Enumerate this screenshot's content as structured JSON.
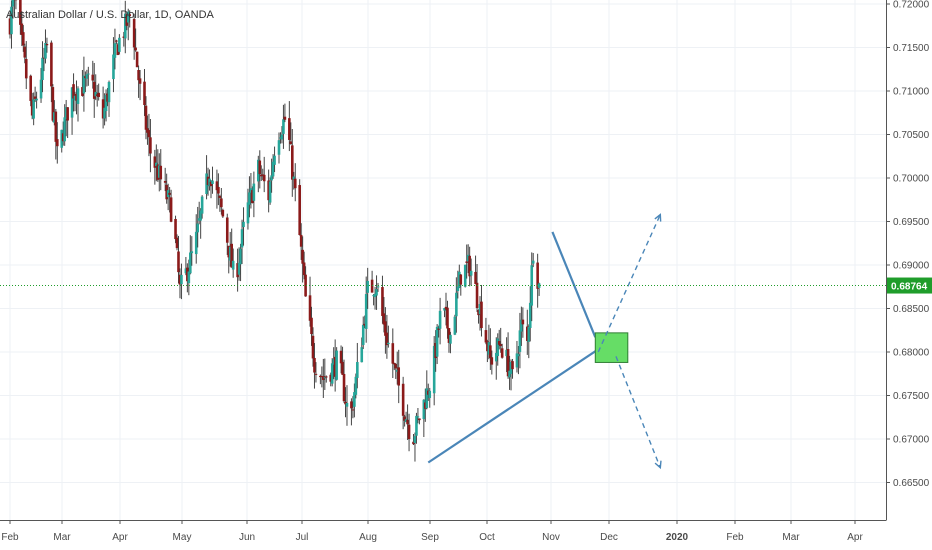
{
  "chart_data": {
    "type": "candlestick",
    "title": "Australian Dollar / U.S. Dollar, 1D, OANDA",
    "xlabel": "",
    "ylabel": "",
    "ylim": [
      0.6635,
      0.7205
    ],
    "grid": true,
    "x_ticks": [
      "Feb",
      "Mar",
      "Apr",
      "May",
      "Jun",
      "Jul",
      "Aug",
      "Sep",
      "Oct",
      "Nov",
      "Dec",
      "2020",
      "Feb",
      "Mar",
      "Apr"
    ],
    "y_ticks": [
      "0.72000",
      "0.71500",
      "0.71000",
      "0.70500",
      "0.70000",
      "0.69500",
      "0.69000",
      "0.68500",
      "0.68000",
      "0.67500",
      "0.67000",
      "0.66500"
    ],
    "last_price": "0.68764",
    "waypoints": [
      {
        "d": 0,
        "p": 0.718
      },
      {
        "d": 3,
        "p": 0.721
      },
      {
        "d": 15,
        "p": 0.707
      },
      {
        "d": 25,
        "p": 0.715
      },
      {
        "d": 32,
        "p": 0.7025
      },
      {
        "d": 42,
        "p": 0.71
      },
      {
        "d": 55,
        "p": 0.711
      },
      {
        "d": 63,
        "p": 0.707
      },
      {
        "d": 72,
        "p": 0.715
      },
      {
        "d": 82,
        "p": 0.719
      },
      {
        "d": 88,
        "p": 0.71
      },
      {
        "d": 95,
        "p": 0.703
      },
      {
        "d": 110,
        "p": 0.696
      },
      {
        "d": 115,
        "p": 0.687
      },
      {
        "d": 125,
        "p": 0.692
      },
      {
        "d": 135,
        "p": 0.701
      },
      {
        "d": 145,
        "p": 0.695
      },
      {
        "d": 152,
        "p": 0.688
      },
      {
        "d": 160,
        "p": 0.696
      },
      {
        "d": 168,
        "p": 0.701
      },
      {
        "d": 175,
        "p": 0.698
      },
      {
        "d": 180,
        "p": 0.705
      },
      {
        "d": 187,
        "p": 0.707
      },
      {
        "d": 195,
        "p": 0.695
      },
      {
        "d": 200,
        "p": 0.686
      },
      {
        "d": 206,
        "p": 0.679
      },
      {
        "d": 212,
        "p": 0.677
      },
      {
        "d": 222,
        "p": 0.679
      },
      {
        "d": 230,
        "p": 0.672
      },
      {
        "d": 236,
        "p": 0.679
      },
      {
        "d": 242,
        "p": 0.687
      },
      {
        "d": 248,
        "p": 0.688
      },
      {
        "d": 253,
        "p": 0.683
      },
      {
        "d": 260,
        "p": 0.678
      },
      {
        "d": 266,
        "p": 0.674
      },
      {
        "d": 272,
        "p": 0.67
      },
      {
        "d": 278,
        "p": 0.673
      },
      {
        "d": 285,
        "p": 0.677
      },
      {
        "d": 292,
        "p": 0.685
      },
      {
        "d": 298,
        "p": 0.682
      },
      {
        "d": 305,
        "p": 0.689
      },
      {
        "d": 311,
        "p": 0.69
      },
      {
        "d": 318,
        "p": 0.685
      },
      {
        "d": 325,
        "p": 0.679
      },
      {
        "d": 332,
        "p": 0.681
      },
      {
        "d": 340,
        "p": 0.677
      },
      {
        "d": 346,
        "p": 0.683
      },
      {
        "d": 350,
        "p": 0.681
      },
      {
        "d": 354,
        "p": 0.692
      },
      {
        "d": 358,
        "p": 0.6876
      }
    ],
    "drawings": {
      "trendline": {
        "from": {
          "d": 283,
          "p": 0.6673
        },
        "to": {
          "d": 413,
          "p": 0.682
        }
      },
      "swing_line": {
        "from": {
          "d": 367,
          "p": 0.6938
        },
        "to": {
          "d": 396,
          "p": 0.6817
        }
      },
      "target_box": {
        "d1": 396,
        "d2": 418,
        "p1": 0.6822,
        "p2": 0.6788
      },
      "projection_up": {
        "from": {
          "d": 398,
          "p": 0.68
        },
        "to": {
          "d": 440,
          "p": 0.6958
        }
      },
      "projection_down": {
        "from": {
          "d": 410,
          "p": 0.6795
        },
        "to": {
          "d": 440,
          "p": 0.6667
        }
      }
    },
    "colors": {
      "up": "#26a69a",
      "down": "#8b1a1a",
      "wick": "#444444",
      "drawing": "#4a86b8",
      "box_fill": "#66dd66",
      "last_price": "#1f9d2b",
      "grid": "#eef1f5"
    }
  }
}
